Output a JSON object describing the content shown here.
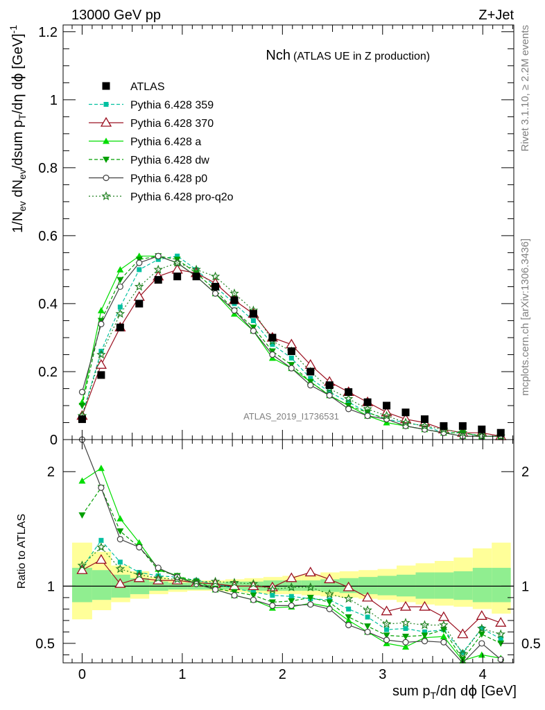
{
  "header": {
    "left": "13000 GeV pp",
    "right": "Z+Jet"
  },
  "title": {
    "main": "Nch",
    "sub": "(ATLAS UE in Z production)"
  },
  "side_labels": {
    "top": "Rivet 3.1.10, ≥ 2.2M events",
    "bottom": "mcplots.cern.ch [arXiv:1306.3436]"
  },
  "watermark": "ATLAS_2019_I1736531",
  "chart_data": [
    {
      "type": "line",
      "panel": "main",
      "ylabel": "1/N_ev dN_ev/dsum p_T/dη dφ [GeV]^-1",
      "ylim": [
        0,
        1.22
      ],
      "xlim": [
        -0.19,
        4.31
      ],
      "x_ticks": [
        "0",
        "1",
        "2",
        "3",
        "4"
      ],
      "y_ticks": [
        "0",
        "0.2",
        "0.4",
        "0.6",
        "0.8",
        "1",
        "1.2"
      ],
      "x": [
        0.0,
        0.19,
        0.38,
        0.57,
        0.76,
        0.95,
        1.14,
        1.33,
        1.52,
        1.71,
        1.9,
        2.09,
        2.28,
        2.47,
        2.66,
        2.85,
        3.04,
        3.23,
        3.42,
        3.61,
        3.8,
        3.99,
        4.18
      ],
      "series": [
        {
          "name": "ATLAS",
          "style": "data",
          "color": "#000000",
          "values": [
            0.06,
            0.19,
            0.33,
            0.4,
            0.47,
            0.48,
            0.48,
            0.45,
            0.41,
            0.37,
            0.3,
            0.26,
            0.2,
            0.16,
            0.14,
            0.11,
            0.1,
            0.08,
            0.06,
            0.04,
            0.04,
            0.03,
            0.02
          ]
        },
        {
          "name": "Pythia 6.428 359",
          "style": "dashed-square",
          "color": "#00c0a0",
          "values": [
            0.07,
            0.26,
            0.39,
            0.5,
            0.53,
            0.54,
            0.5,
            0.45,
            0.4,
            0.35,
            0.28,
            0.24,
            0.18,
            0.14,
            0.11,
            0.08,
            0.06,
            0.05,
            0.04,
            0.02,
            0.02,
            0.01,
            0.01
          ]
        },
        {
          "name": "Pythia 6.428 370",
          "style": "solid-triangle-open",
          "color": "#9b1020",
          "values": [
            0.07,
            0.22,
            0.33,
            0.42,
            0.48,
            0.5,
            0.49,
            0.46,
            0.41,
            0.37,
            0.3,
            0.28,
            0.22,
            0.17,
            0.14,
            0.11,
            0.08,
            0.06,
            0.05,
            0.03,
            0.02,
            0.02,
            0.01
          ]
        },
        {
          "name": "Pythia 6.428 a",
          "style": "solid-triangle",
          "color": "#00dd00",
          "values": [
            0.11,
            0.38,
            0.5,
            0.54,
            0.54,
            0.52,
            0.48,
            0.43,
            0.37,
            0.32,
            0.24,
            0.21,
            0.17,
            0.13,
            0.1,
            0.07,
            0.05,
            0.04,
            0.03,
            0.02,
            0.01,
            0.01,
            0.01
          ]
        },
        {
          "name": "Pythia 6.428 dw",
          "style": "dashed-triangle-down",
          "color": "#00a000",
          "values": [
            0.1,
            0.35,
            0.47,
            0.53,
            0.54,
            0.53,
            0.49,
            0.44,
            0.38,
            0.33,
            0.26,
            0.22,
            0.17,
            0.13,
            0.1,
            0.08,
            0.06,
            0.04,
            0.03,
            0.02,
            0.02,
            0.01,
            0.01
          ]
        },
        {
          "name": "Pythia 6.428 p0",
          "style": "solid-circle-open",
          "color": "#404040",
          "values": [
            0.14,
            0.34,
            0.45,
            0.52,
            0.54,
            0.52,
            0.48,
            0.43,
            0.38,
            0.32,
            0.25,
            0.21,
            0.16,
            0.13,
            0.09,
            0.07,
            0.06,
            0.04,
            0.03,
            0.02,
            0.01,
            0.01,
            0.01
          ]
        },
        {
          "name": "Pythia 6.428 pro-q2o",
          "style": "dotted-star",
          "color": "#208020",
          "values": [
            0.07,
            0.25,
            0.37,
            0.45,
            0.5,
            0.52,
            0.5,
            0.48,
            0.43,
            0.38,
            0.29,
            0.26,
            0.2,
            0.15,
            0.12,
            0.09,
            0.07,
            0.05,
            0.04,
            0.03,
            0.02,
            0.01,
            0.01
          ]
        }
      ]
    },
    {
      "type": "line",
      "panel": "ratio",
      "ylabel": "Ratio to ATLAS",
      "xlabel": "sum p_T/dη dφ [GeV]",
      "ylim": [
        0.33,
        2.28
      ],
      "xlim": [
        -0.19,
        4.31
      ],
      "x_ticks": [
        "0",
        "1",
        "2",
        "3",
        "4"
      ],
      "y_ticks": [
        "0.5",
        "1",
        "2"
      ],
      "reference_line": 1,
      "x": [
        0.0,
        0.19,
        0.38,
        0.57,
        0.76,
        0.95,
        1.14,
        1.33,
        1.52,
        1.71,
        1.9,
        2.09,
        2.28,
        2.47,
        2.66,
        2.85,
        3.04,
        3.23,
        3.42,
        3.61,
        3.8,
        3.99,
        4.18
      ],
      "bands": {
        "edges": [
          -0.1,
          0.1,
          0.29,
          0.48,
          0.67,
          0.86,
          1.05,
          1.24,
          1.43,
          1.62,
          1.81,
          2.0,
          2.19,
          2.38,
          2.57,
          2.76,
          2.95,
          3.14,
          3.33,
          3.52,
          3.71,
          3.9,
          4.09,
          4.28
        ],
        "inner": {
          "color": "#90ee90",
          "lo": [
            0.86,
            0.88,
            0.9,
            0.93,
            0.96,
            0.97,
            0.97,
            0.97,
            0.97,
            0.96,
            0.96,
            0.96,
            0.96,
            0.95,
            0.94,
            0.93,
            0.92,
            0.91,
            0.89,
            0.89,
            0.88,
            0.86,
            0.86
          ],
          "hi": [
            1.16,
            1.14,
            1.1,
            1.07,
            1.04,
            1.03,
            1.03,
            1.03,
            1.04,
            1.04,
            1.05,
            1.05,
            1.05,
            1.06,
            1.07,
            1.08,
            1.09,
            1.1,
            1.12,
            1.12,
            1.13,
            1.16,
            1.16
          ]
        },
        "outer": {
          "color": "#ffff99",
          "lo": [
            0.71,
            0.79,
            0.86,
            0.89,
            0.93,
            0.95,
            0.96,
            0.96,
            0.95,
            0.94,
            0.93,
            0.93,
            0.92,
            0.91,
            0.9,
            0.89,
            0.88,
            0.86,
            0.84,
            0.83,
            0.82,
            0.8,
            0.76
          ],
          "hi": [
            1.38,
            1.3,
            1.18,
            1.13,
            1.08,
            1.06,
            1.05,
            1.05,
            1.06,
            1.07,
            1.08,
            1.09,
            1.1,
            1.12,
            1.13,
            1.14,
            1.15,
            1.18,
            1.2,
            1.22,
            1.25,
            1.33,
            1.38
          ]
        }
      },
      "series": [
        {
          "name": "Pythia 6.428 359",
          "values": [
            1.16,
            1.4,
            1.21,
            1.12,
            1.09,
            1.08,
            1.05,
            1.02,
            0.98,
            0.95,
            0.92,
            0.91,
            0.89,
            0.88,
            0.8,
            0.73,
            0.62,
            0.63,
            0.6,
            0.62,
            0.42,
            0.63,
            0.54
          ]
        },
        {
          "name": "Pythia 6.428 370",
          "values": [
            1.14,
            1.23,
            1.02,
            1.07,
            1.05,
            1.05,
            1.03,
            1.02,
            1.0,
            1.0,
            0.99,
            1.07,
            1.12,
            1.06,
            0.99,
            0.9,
            0.78,
            0.82,
            0.82,
            0.73,
            0.58,
            0.74,
            0.68
          ]
        },
        {
          "name": "Pythia 6.428 a",
          "values": [
            1.92,
            2.03,
            1.59,
            1.38,
            1.15,
            1.09,
            1.02,
            0.97,
            0.92,
            0.88,
            0.81,
            0.82,
            0.85,
            0.82,
            0.7,
            0.6,
            0.5,
            0.47,
            0.55,
            0.56,
            0.35,
            0.4,
            0.37
          ]
        },
        {
          "name": "Pythia 6.428 dw",
          "values": [
            1.62,
            1.86,
            1.48,
            1.34,
            1.14,
            1.09,
            1.04,
            0.98,
            0.95,
            0.92,
            0.86,
            0.87,
            0.9,
            0.86,
            0.73,
            0.65,
            0.57,
            0.56,
            0.57,
            0.62,
            0.36,
            0.58,
            0.5
          ]
        },
        {
          "name": "Pythia 6.428 p0",
          "values": [
            2.28,
            1.86,
            1.41,
            1.34,
            1.16,
            1.08,
            1.02,
            0.97,
            0.92,
            0.88,
            0.83,
            0.83,
            0.84,
            0.8,
            0.66,
            0.6,
            0.53,
            0.51,
            0.52,
            0.51,
            0.28,
            0.5,
            0.36
          ]
        },
        {
          "name": "Pythia 6.428 pro-q2o",
          "values": [
            1.18,
            1.34,
            1.15,
            1.1,
            1.07,
            1.06,
            1.04,
            1.04,
            1.03,
            1.02,
            0.97,
            0.99,
            0.99,
            0.93,
            0.89,
            0.79,
            0.67,
            0.68,
            0.66,
            0.66,
            0.41,
            0.63,
            0.58
          ]
        }
      ]
    }
  ]
}
